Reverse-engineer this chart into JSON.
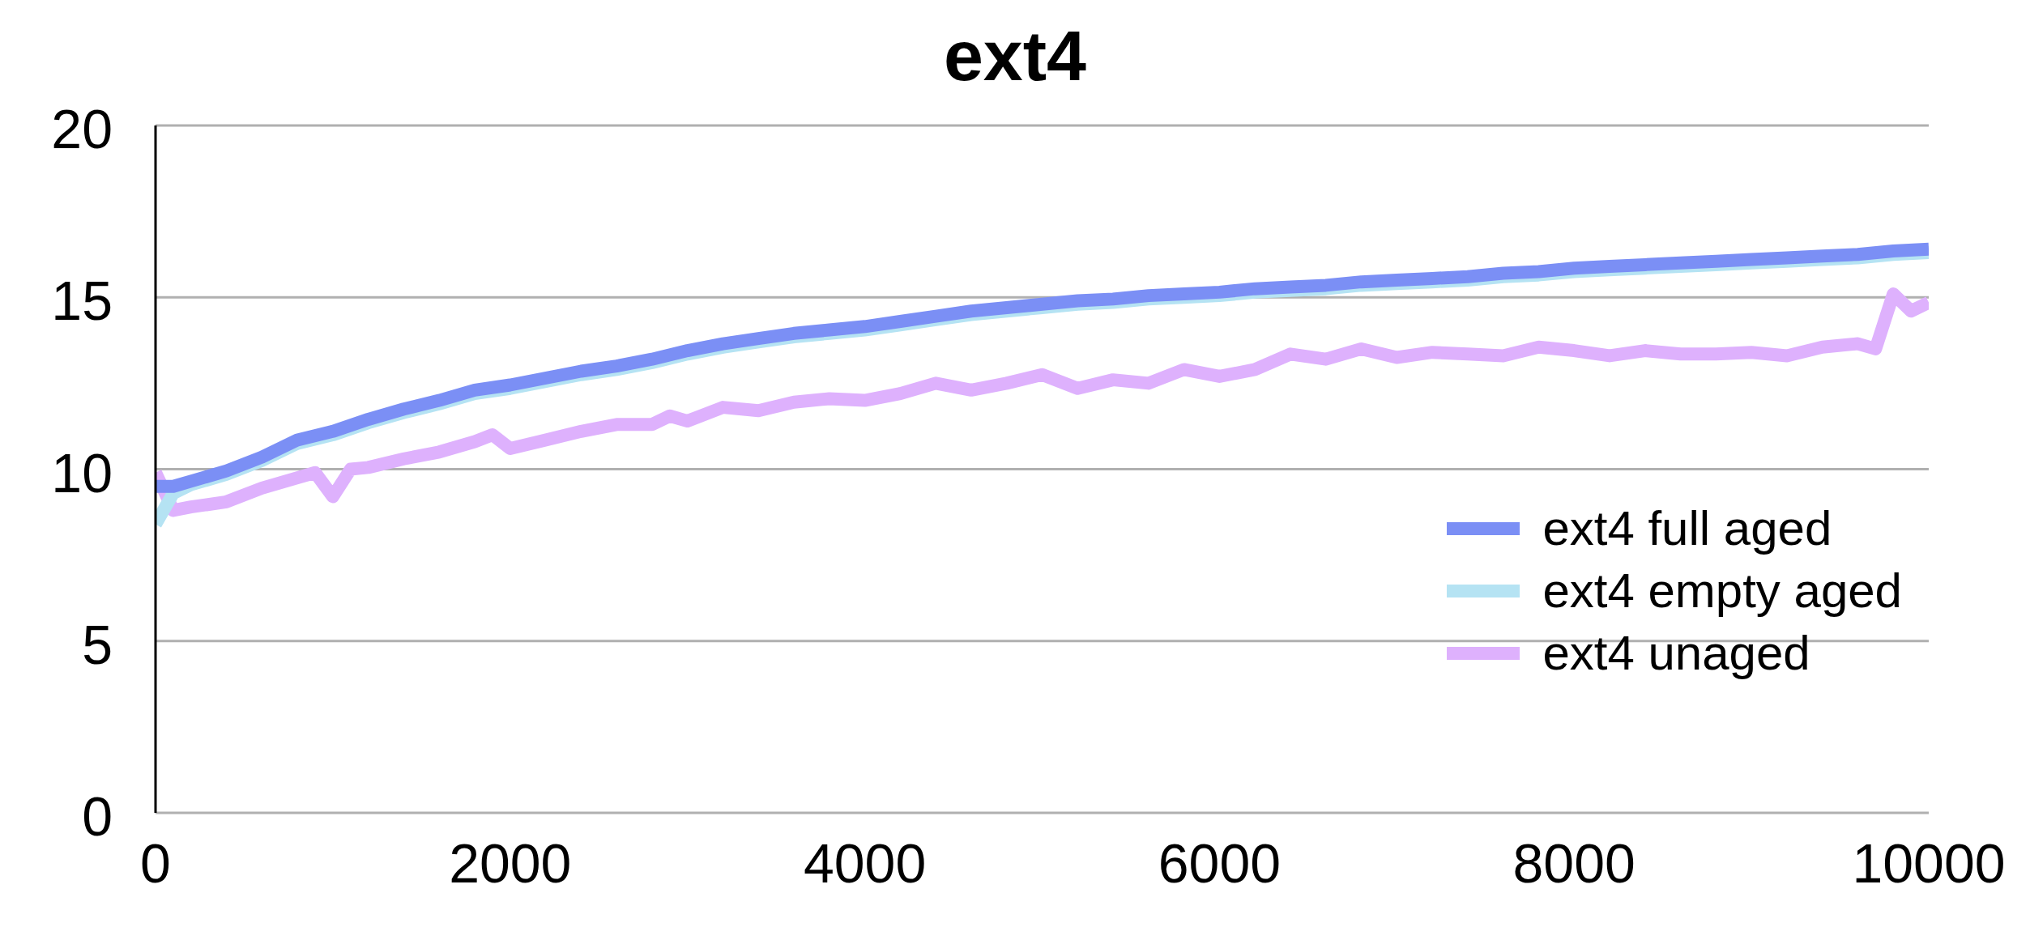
{
  "chart_data": {
    "type": "line",
    "title": "ext4",
    "xlim": [
      0,
      10000
    ],
    "xticks": [
      0,
      2000,
      4000,
      6000,
      8000,
      10000
    ],
    "ylim": [
      0,
      20
    ],
    "yticks": [
      0,
      5,
      10,
      15,
      20
    ],
    "grid": "y",
    "legend": "right",
    "marker": "none",
    "line_style": "solid",
    "series": [
      {
        "name": "ext4 unaged",
        "color": "#deb1fd",
        "x": [
          0,
          100,
          200,
          400,
          600,
          800,
          900,
          1000,
          1100,
          1200,
          1400,
          1600,
          1800,
          1900,
          2000,
          2200,
          2400,
          2600,
          2800,
          2900,
          3000,
          3200,
          3400,
          3600,
          3800,
          4000,
          4200,
          4400,
          4600,
          4800,
          5000,
          5200,
          5400,
          5600,
          5800,
          6000,
          6200,
          6400,
          6600,
          6800,
          7000,
          7200,
          7400,
          7600,
          7800,
          8000,
          8200,
          8400,
          8600,
          8800,
          9000,
          9200,
          9400,
          9600,
          9700,
          9800,
          9900,
          10000
        ],
        "values": [
          9.9,
          8.8,
          8.9,
          9.05,
          9.45,
          9.75,
          9.9,
          9.2,
          10.0,
          10.05,
          10.3,
          10.5,
          10.8,
          11.0,
          10.6,
          10.85,
          11.1,
          11.3,
          11.3,
          11.55,
          11.4,
          11.8,
          11.7,
          11.95,
          12.05,
          12.0,
          12.2,
          12.5,
          12.3,
          12.5,
          12.75,
          12.35,
          12.6,
          12.5,
          12.9,
          12.7,
          12.9,
          13.35,
          13.2,
          13.5,
          13.25,
          13.4,
          13.35,
          13.3,
          13.55,
          13.45,
          13.3,
          13.45,
          13.35,
          13.35,
          13.4,
          13.3,
          13.55,
          13.65,
          13.5,
          15.1,
          14.6,
          14.85
        ]
      },
      {
        "name": "ext4 empty aged",
        "color": "#b5e3f3",
        "x": [
          0,
          100,
          200,
          400,
          600,
          800,
          1000,
          1200,
          1400,
          1600,
          1800,
          2000,
          2200,
          2400,
          2600,
          2800,
          3000,
          3200,
          3400,
          3600,
          3800,
          4000,
          4200,
          4400,
          4600,
          4800,
          5000,
          5200,
          5400,
          5600,
          5800,
          6000,
          6200,
          6400,
          6600,
          6800,
          7000,
          7200,
          7400,
          7600,
          7800,
          8000,
          8200,
          8400,
          8600,
          8800,
          9000,
          9200,
          9400,
          9600,
          9800,
          10000
        ],
        "values": [
          8.4,
          9.3,
          9.55,
          9.85,
          10.25,
          10.75,
          11.0,
          11.35,
          11.65,
          11.9,
          12.2,
          12.35,
          12.55,
          12.75,
          12.9,
          13.1,
          13.35,
          13.55,
          13.7,
          13.85,
          13.95,
          14.05,
          14.2,
          14.35,
          14.5,
          14.6,
          14.7,
          14.8,
          14.85,
          14.95,
          15.0,
          15.05,
          15.15,
          15.2,
          15.25,
          15.35,
          15.4,
          15.45,
          15.5,
          15.6,
          15.65,
          15.75,
          15.8,
          15.85,
          15.9,
          15.95,
          16.0,
          16.05,
          16.1,
          16.15,
          16.25,
          16.3
        ]
      },
      {
        "name": "ext4 full aged",
        "color": "#7b8ff5",
        "x": [
          0,
          100,
          200,
          400,
          600,
          800,
          1000,
          1200,
          1400,
          1600,
          1800,
          2000,
          2200,
          2400,
          2600,
          2800,
          3000,
          3200,
          3400,
          3600,
          3800,
          4000,
          4200,
          4400,
          4600,
          4800,
          5000,
          5200,
          5400,
          5600,
          5800,
          6000,
          6200,
          6400,
          6600,
          6800,
          7000,
          7200,
          7400,
          7600,
          7800,
          8000,
          8200,
          8400,
          8600,
          8800,
          9000,
          9200,
          9400,
          9600,
          9800,
          10000
        ],
        "values": [
          9.5,
          9.5,
          9.65,
          9.95,
          10.35,
          10.85,
          11.1,
          11.45,
          11.75,
          12.0,
          12.3,
          12.45,
          12.65,
          12.85,
          13.0,
          13.2,
          13.45,
          13.65,
          13.8,
          13.95,
          14.05,
          14.15,
          14.3,
          14.45,
          14.6,
          14.7,
          14.8,
          14.9,
          14.95,
          15.05,
          15.1,
          15.15,
          15.25,
          15.3,
          15.35,
          15.45,
          15.5,
          15.55,
          15.6,
          15.7,
          15.75,
          15.85,
          15.9,
          15.95,
          16.0,
          16.05,
          16.1,
          16.15,
          16.2,
          16.25,
          16.35,
          16.4
        ]
      }
    ]
  }
}
